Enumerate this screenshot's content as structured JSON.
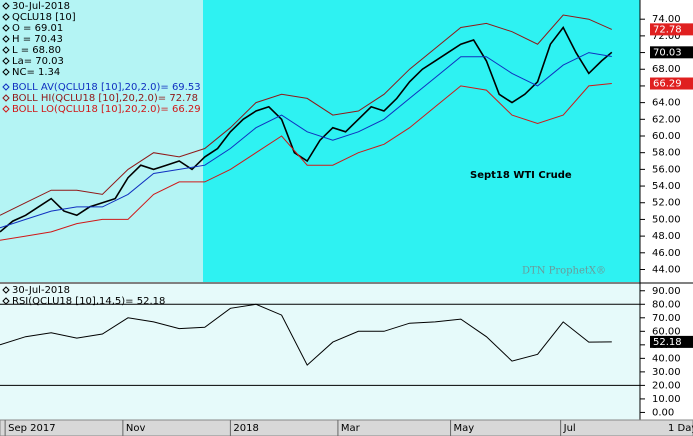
{
  "chart_data": [
    {
      "type": "line",
      "title": "Sept18 WTI Crude",
      "watermark": "DTN ProphetX®",
      "annotations": [
        "30-Jul-2018",
        "QCLU18 [10]",
        "O = 69.01",
        "H = 70.43",
        "L = 68.80",
        "La= 70.03",
        "NC= 1.34"
      ],
      "xlim": [
        0,
        250
      ],
      "xticks": [
        {
          "value": 2,
          "label": "Sep 2017"
        },
        {
          "value": 48,
          "label": "Nov"
        },
        {
          "value": 90,
          "label": "2018"
        },
        {
          "value": 132,
          "label": "Mar"
        },
        {
          "value": 176,
          "label": "May"
        },
        {
          "value": 219,
          "label": "Jul"
        }
      ],
      "interval": "1 Day",
      "ylim": [
        42.5,
        76.3
      ],
      "yticks": [
        {
          "value": 44,
          "label": "44.00"
        },
        {
          "value": 46,
          "label": "46.00"
        },
        {
          "value": 48,
          "label": "48.00"
        },
        {
          "value": 50,
          "label": "50.00"
        },
        {
          "value": 52,
          "label": "52.00"
        },
        {
          "value": 54,
          "label": "54.00"
        },
        {
          "value": 56,
          "label": "56.00"
        },
        {
          "value": 58,
          "label": "58.00"
        },
        {
          "value": 60,
          "label": "60.00"
        },
        {
          "value": 62,
          "label": "62.00"
        },
        {
          "value": 64,
          "label": "64.00"
        },
        {
          "value": 66,
          "label": "66.00"
        },
        {
          "value": 68,
          "label": "68.00"
        },
        {
          "value": 70,
          "label": "70.00"
        },
        {
          "value": 72,
          "label": "72.00"
        },
        {
          "value": 74,
          "label": "74.00"
        }
      ],
      "markers": [
        {
          "value": 72.78,
          "color": "#e02020"
        },
        {
          "value": 70.03,
          "color": "#000000"
        },
        {
          "value": 66.29,
          "color": "#e02020"
        }
      ],
      "series": [
        {
          "name": "QCLU18 [10]",
          "color": "#000000",
          "x": [
            0,
            5,
            10,
            15,
            20,
            25,
            30,
            35,
            40,
            45,
            50,
            55,
            60,
            65,
            70,
            75,
            80,
            85,
            90,
            95,
            100,
            105,
            110,
            115,
            120,
            125,
            130,
            135,
            140,
            145,
            150,
            155,
            160,
            165,
            170,
            175,
            180,
            185,
            190,
            195,
            200,
            205,
            210,
            215,
            220,
            225,
            230,
            235,
            239
          ],
          "values": [
            48.5,
            49.8,
            50.5,
            51.5,
            52.5,
            51.0,
            50.5,
            51.5,
            52.0,
            52.5,
            55.0,
            56.5,
            56.0,
            56.5,
            57.0,
            56.0,
            57.5,
            58.5,
            60.5,
            62.0,
            63.0,
            63.5,
            62.0,
            58.0,
            57.0,
            59.5,
            61.0,
            60.5,
            62.0,
            63.5,
            63.0,
            64.5,
            66.5,
            68.0,
            69.0,
            70.0,
            71.0,
            71.5,
            69.0,
            65.0,
            64.0,
            65.0,
            66.5,
            71.0,
            73.0,
            70.0,
            67.5,
            69.0,
            70.03
          ]
        },
        {
          "name": "BOLL AV(QCLU18 [10],20,2.0)= 69.53",
          "color": "#1030c0",
          "x": [
            0,
            10,
            20,
            30,
            40,
            50,
            60,
            70,
            80,
            90,
            100,
            110,
            120,
            130,
            140,
            150,
            160,
            170,
            180,
            190,
            200,
            210,
            220,
            230,
            239
          ],
          "values": [
            49,
            50,
            51,
            51.5,
            51.5,
            53,
            55.5,
            56,
            56.5,
            58.5,
            61,
            62.5,
            60.5,
            59.5,
            60.5,
            62,
            64.5,
            67,
            69.5,
            69.5,
            67.5,
            66,
            68.5,
            70,
            69.53
          ]
        },
        {
          "name": "BOLL HI(QCLU18 [10],20,2.0)= 72.78",
          "color": "#901818",
          "x": [
            0,
            10,
            20,
            30,
            40,
            50,
            60,
            70,
            80,
            90,
            100,
            110,
            120,
            130,
            140,
            150,
            160,
            170,
            180,
            190,
            200,
            210,
            220,
            230,
            239
          ],
          "values": [
            50.5,
            52,
            53.5,
            53.5,
            53,
            56,
            58,
            57.5,
            58.5,
            61,
            64,
            65,
            64.5,
            62.5,
            63,
            65,
            68,
            70.5,
            73,
            73.5,
            72.5,
            71,
            74.5,
            74,
            72.78
          ]
        },
        {
          "name": "BOLL LO(QCLU18 [10],20,2.0)= 66.29",
          "color": "#d01818",
          "x": [
            0,
            10,
            20,
            30,
            40,
            50,
            60,
            70,
            80,
            90,
            100,
            110,
            120,
            130,
            140,
            150,
            160,
            170,
            180,
            190,
            200,
            210,
            220,
            230,
            239
          ],
          "values": [
            47.5,
            48,
            48.5,
            49.5,
            50,
            50,
            53,
            54.5,
            54.5,
            56,
            58,
            60,
            56.5,
            56.5,
            58,
            59,
            61,
            63.5,
            66,
            65.5,
            62.5,
            61.5,
            62.5,
            66,
            66.29
          ]
        }
      ]
    },
    {
      "type": "line",
      "annotations": [
        "30-Jul-2018"
      ],
      "xlim": [
        0,
        250
      ],
      "ylim": [
        -5.6,
        95
      ],
      "yticks": [
        {
          "value": 0,
          "label": "0.00"
        },
        {
          "value": 10,
          "label": "10.00"
        },
        {
          "value": 20,
          "label": "20.00"
        },
        {
          "value": 30,
          "label": "30.00"
        },
        {
          "value": 40,
          "label": "40.00"
        },
        {
          "value": 50,
          "label": "50.00"
        },
        {
          "value": 60,
          "label": "60.00"
        },
        {
          "value": 70,
          "label": "70.00"
        },
        {
          "value": 80,
          "label": "80.00"
        },
        {
          "value": 90,
          "label": "90.00"
        }
      ],
      "hlines": [
        20,
        80
      ],
      "markers": [
        {
          "value": 52.18,
          "color": "#000000"
        }
      ],
      "series": [
        {
          "name": "RSI(QCLU18 [10],14,5)= 52.18",
          "color": "#000000",
          "x": [
            0,
            10,
            20,
            30,
            40,
            50,
            60,
            70,
            80,
            90,
            100,
            110,
            120,
            130,
            140,
            150,
            160,
            170,
            180,
            190,
            200,
            210,
            220,
            230,
            239
          ],
          "values": [
            50,
            56,
            59,
            55,
            58,
            70,
            67,
            62,
            63,
            77,
            80,
            72,
            35,
            52,
            60,
            60,
            66,
            67,
            69,
            56,
            38,
            43,
            67,
            52,
            52.18
          ]
        }
      ]
    }
  ]
}
